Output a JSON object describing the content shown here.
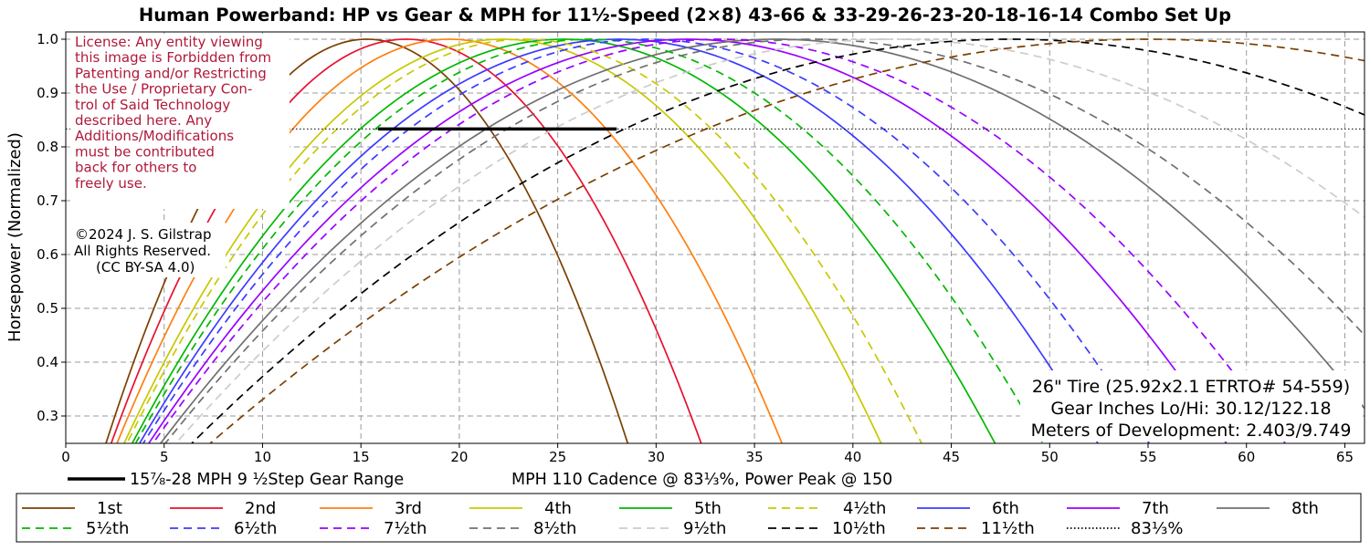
{
  "chart_data": {
    "type": "line",
    "title": "Human Powerband: HP vs Gear & MPH for 11½-Speed (2×8)  43-66 & 33-29-26-23-20-18-16-14 Combo Set Up",
    "ylabel": "Horsepower (Normalized)",
    "xlabel": "MPH  110 Cadence @ 83⅓%, Power Peak @ 150",
    "xlim": [
      0,
      66
    ],
    "ylim": [
      0.25,
      1.02
    ],
    "x_ticks": [
      "0",
      "5",
      "10",
      "15",
      "20",
      "25",
      "30",
      "35",
      "40",
      "45",
      "50",
      "55",
      "60",
      "65"
    ],
    "y_ticks": [
      "0.3",
      "0.4",
      "0.5",
      "0.6",
      "0.7",
      "0.8",
      "0.9",
      "1.0"
    ],
    "grid": true,
    "legend_position": "bottom",
    "series": [
      {
        "name": "1st",
        "peak_mph": 15.3,
        "color": "#7b3f00",
        "dash": false
      },
      {
        "name": "2nd",
        "peak_mph": 17.3,
        "color": "#e8102f",
        "dash": false
      },
      {
        "name": "3rd",
        "peak_mph": 19.5,
        "color": "#ff7f0e",
        "dash": false
      },
      {
        "name": "4th",
        "peak_mph": 22.2,
        "color": "#c8c800",
        "dash": false
      },
      {
        "name": "5th",
        "peak_mph": 25.3,
        "color": "#00b800",
        "dash": false
      },
      {
        "name": "6th",
        "peak_mph": 28.1,
        "color": "#3b3bff",
        "dash": false
      },
      {
        "name": "7th",
        "peak_mph": 31.6,
        "color": "#9900ff",
        "dash": false
      },
      {
        "name": "8th",
        "peak_mph": 36.1,
        "color": "#707070",
        "dash": false
      },
      {
        "name": "4½th",
        "peak_mph": 23.3,
        "color": "#c8c800",
        "dash": true
      },
      {
        "name": "5½th",
        "peak_mph": 26.6,
        "color": "#00b800",
        "dash": true
      },
      {
        "name": "6½th",
        "peak_mph": 29.5,
        "color": "#3b3bff",
        "dash": true
      },
      {
        "name": "7½th",
        "peak_mph": 33.2,
        "color": "#9900ff",
        "dash": true
      },
      {
        "name": "8½th",
        "peak_mph": 37.9,
        "color": "#707070",
        "dash": true
      },
      {
        "name": "9½th",
        "peak_mph": 41.9,
        "color": "#cccccc",
        "dash": true
      },
      {
        "name": "10½th",
        "peak_mph": 48.0,
        "color": "#000000",
        "dash": true
      },
      {
        "name": "11½th",
        "peak_mph": 55.0,
        "color": "#7b3f00",
        "dash": true
      }
    ],
    "reference_line": {
      "name": "83⅓%",
      "y": 0.8333,
      "style": "dotted"
    },
    "gear_range": {
      "label": "15⅞-28 MPH  9 ½Step Gear Range",
      "x_start": 15.875,
      "x_end": 28.0,
      "y": 0.8333
    },
    "legend_order": [
      "1st",
      "2nd",
      "3rd",
      "4th",
      "5th",
      "4½th",
      "6th",
      "7th",
      "8th",
      "5½th",
      "6½th",
      "7½th",
      "8½th",
      "9½th",
      "10½th",
      "11½th",
      "83⅓%"
    ]
  },
  "annotations": {
    "license": [
      "License: Any entity viewing",
      "this image is Forbidden from",
      "Patenting and/or Restricting",
      "the Use / Proprietary Con-",
      "trol of Said Technology",
      "described here. Any",
      "Additions/Modifications",
      "must be contributed",
      "back for others to",
      "freely use."
    ],
    "copyright": [
      "©2024 J. S. Gilstrap",
      "All Rights Reserved.",
      "(CC BY-SA 4.0)"
    ],
    "info": [
      "26\" Tire (25.92x2.1 ETRTO# 54-559)",
      "Gear Inches Lo/Hi: 30.12/122.18",
      "Meters of Development: 2.403/9.749"
    ]
  },
  "colors": {
    "license_text": "#b0193a",
    "grid": "#999999"
  }
}
